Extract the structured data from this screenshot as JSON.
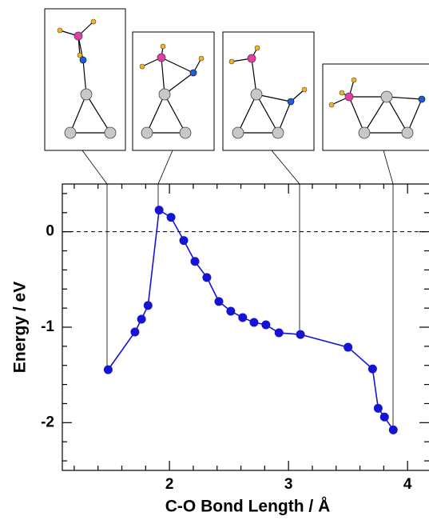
{
  "chart_data": {
    "type": "line",
    "xlabel": "C-O Bond Length / Å",
    "ylabel": "Energy / eV",
    "x": [
      1.485,
      1.71,
      1.765,
      1.82,
      1.913,
      2.013,
      2.12,
      2.214,
      2.314,
      2.415,
      2.515,
      2.615,
      2.71,
      2.81,
      2.92,
      3.1,
      3.5,
      3.706,
      3.753,
      3.806,
      3.88
    ],
    "series": [
      {
        "color": "#1414d2",
        "values": [
          -1.445,
          -1.05,
          -0.916,
          -0.773,
          0.227,
          0.151,
          -0.092,
          -0.311,
          -0.479,
          -0.731,
          -0.832,
          -0.899,
          -0.95,
          -0.975,
          -1.059,
          -1.076,
          -1.21,
          -1.437,
          -1.849,
          -1.941,
          -2.076
        ]
      }
    ],
    "xlim": [
      1.1,
      4.18
    ],
    "ylim": [
      -2.5,
      0.5
    ],
    "xticks": [
      2,
      3,
      4
    ],
    "yticks": [
      -2,
      -1,
      0
    ],
    "xminorticks": [
      1.2,
      1.4,
      1.6,
      1.8,
      2.2,
      2.4,
      2.6,
      2.8,
      3.2,
      3.4,
      3.6,
      3.8
    ],
    "yminorticks": [
      -2.4,
      -2.2,
      -1.8,
      -1.6,
      -1.4,
      -1.2,
      -0.8,
      -0.6,
      -0.4,
      -0.2,
      0.2,
      0.4
    ],
    "hline": 0
  }
}
